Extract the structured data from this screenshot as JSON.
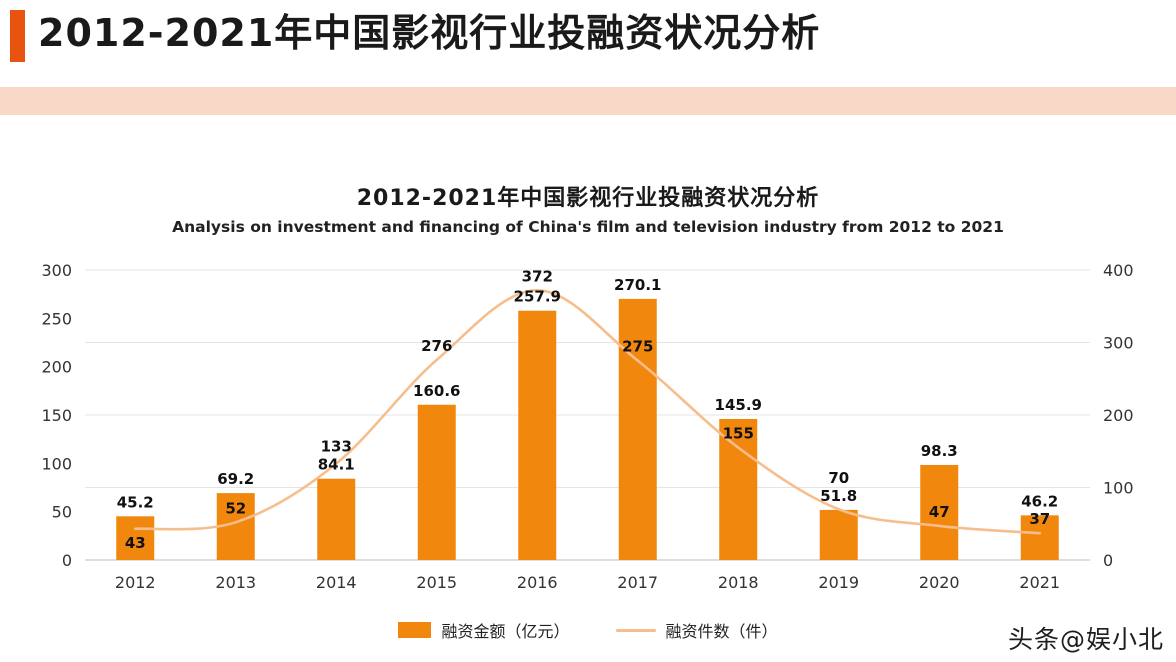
{
  "page": {
    "title": "2012-2021年中国影视行业投融资状况分析",
    "watermark": "头条@娱小北"
  },
  "colors": {
    "accent": "#E8530F",
    "band": "#F8D8C6",
    "bar": "#F2870E",
    "line": "#F7BE8D",
    "gridline": "#E4E4E4",
    "axis_line": "#C9C9C9",
    "axis_text": "#333333",
    "label_text": "#111111"
  },
  "chart_data": {
    "type": "bar",
    "combo": "bar+line",
    "title": "2012-2021年中国影视行业投融资状况分析",
    "subtitle": "Analysis on investment and financing of China's film and television industry from 2012 to 2021",
    "categories": [
      "2012",
      "2013",
      "2014",
      "2015",
      "2016",
      "2017",
      "2018",
      "2019",
      "2020",
      "2021"
    ],
    "series": [
      {
        "name": "融资金额（亿元）",
        "type": "bar",
        "axis": "left",
        "color": "#F2870E",
        "values": [
          45.2,
          69.2,
          84.1,
          160.6,
          257.9,
          270.1,
          145.9,
          51.8,
          98.3,
          46.2
        ]
      },
      {
        "name": "融资件数（件）",
        "type": "line",
        "axis": "right",
        "color": "#F7BE8D",
        "values": [
          43,
          52,
          133,
          276,
          372,
          275,
          155,
          70,
          47,
          37
        ]
      }
    ],
    "axes": {
      "left": {
        "min": 0,
        "max": 300,
        "step": 50
      },
      "right": {
        "min": 0,
        "max": 400,
        "step": 100
      }
    },
    "grid": true,
    "legend_position": "bottom",
    "data_labels": true
  }
}
